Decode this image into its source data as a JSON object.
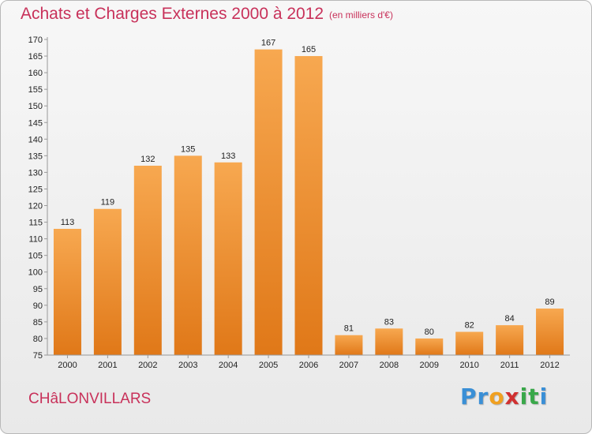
{
  "header": {
    "title": "Achats et Charges Externes 2000 à 2012",
    "subtitle": "(en milliers d'€)"
  },
  "footer": {
    "commune": "CHâLONVILLARS",
    "logo_letters": [
      {
        "char": "P",
        "color": "#3a8fd6"
      },
      {
        "char": "r",
        "color": "#3a8fd6"
      },
      {
        "char": "o",
        "color": "#f0a020"
      },
      {
        "char": "x",
        "color": "#d03030"
      },
      {
        "char": "i",
        "color": "#39a84a"
      },
      {
        "char": "t",
        "color": "#39a84a"
      },
      {
        "char": "i",
        "color": "#3a8fd6"
      }
    ]
  },
  "chart_data": {
    "type": "bar",
    "title": "Achats et Charges Externes 2000 à 2012",
    "subtitle": "(en milliers d'€)",
    "categories": [
      "2000",
      "2001",
      "2002",
      "2003",
      "2004",
      "2005",
      "2006",
      "2007",
      "2008",
      "2009",
      "2010",
      "2011",
      "2012"
    ],
    "values": [
      113,
      119,
      132,
      135,
      133,
      167,
      165,
      81,
      83,
      80,
      82,
      84,
      89
    ],
    "ylim": [
      75,
      170
    ],
    "ytick_step": 5,
    "xlabel": "",
    "ylabel": "",
    "grid": false,
    "legend": "none",
    "bar_color_top": "#f7a850",
    "bar_color_bottom": "#e07818"
  }
}
